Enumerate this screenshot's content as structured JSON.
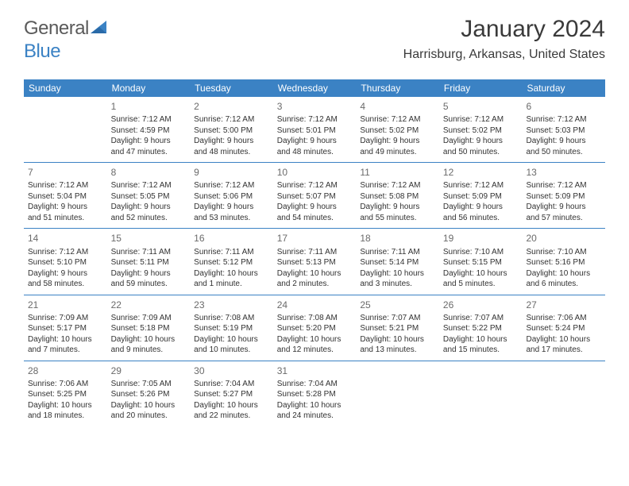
{
  "logo": {
    "text1": "General",
    "text2": "Blue"
  },
  "header": {
    "month": "January 2024",
    "location": "Harrisburg, Arkansas, United States"
  },
  "colors": {
    "accent": "#3b82c4",
    "text": "#323232",
    "muted": "#6a6a6a",
    "bg": "#ffffff"
  },
  "dayNames": [
    "Sunday",
    "Monday",
    "Tuesday",
    "Wednesday",
    "Thursday",
    "Friday",
    "Saturday"
  ],
  "weeks": [
    [
      null,
      {
        "n": "1",
        "sr": "Sunrise: 7:12 AM",
        "ss": "Sunset: 4:59 PM",
        "d1": "Daylight: 9 hours",
        "d2": "and 47 minutes."
      },
      {
        "n": "2",
        "sr": "Sunrise: 7:12 AM",
        "ss": "Sunset: 5:00 PM",
        "d1": "Daylight: 9 hours",
        "d2": "and 48 minutes."
      },
      {
        "n": "3",
        "sr": "Sunrise: 7:12 AM",
        "ss": "Sunset: 5:01 PM",
        "d1": "Daylight: 9 hours",
        "d2": "and 48 minutes."
      },
      {
        "n": "4",
        "sr": "Sunrise: 7:12 AM",
        "ss": "Sunset: 5:02 PM",
        "d1": "Daylight: 9 hours",
        "d2": "and 49 minutes."
      },
      {
        "n": "5",
        "sr": "Sunrise: 7:12 AM",
        "ss": "Sunset: 5:02 PM",
        "d1": "Daylight: 9 hours",
        "d2": "and 50 minutes."
      },
      {
        "n": "6",
        "sr": "Sunrise: 7:12 AM",
        "ss": "Sunset: 5:03 PM",
        "d1": "Daylight: 9 hours",
        "d2": "and 50 minutes."
      }
    ],
    [
      {
        "n": "7",
        "sr": "Sunrise: 7:12 AM",
        "ss": "Sunset: 5:04 PM",
        "d1": "Daylight: 9 hours",
        "d2": "and 51 minutes."
      },
      {
        "n": "8",
        "sr": "Sunrise: 7:12 AM",
        "ss": "Sunset: 5:05 PM",
        "d1": "Daylight: 9 hours",
        "d2": "and 52 minutes."
      },
      {
        "n": "9",
        "sr": "Sunrise: 7:12 AM",
        "ss": "Sunset: 5:06 PM",
        "d1": "Daylight: 9 hours",
        "d2": "and 53 minutes."
      },
      {
        "n": "10",
        "sr": "Sunrise: 7:12 AM",
        "ss": "Sunset: 5:07 PM",
        "d1": "Daylight: 9 hours",
        "d2": "and 54 minutes."
      },
      {
        "n": "11",
        "sr": "Sunrise: 7:12 AM",
        "ss": "Sunset: 5:08 PM",
        "d1": "Daylight: 9 hours",
        "d2": "and 55 minutes."
      },
      {
        "n": "12",
        "sr": "Sunrise: 7:12 AM",
        "ss": "Sunset: 5:09 PM",
        "d1": "Daylight: 9 hours",
        "d2": "and 56 minutes."
      },
      {
        "n": "13",
        "sr": "Sunrise: 7:12 AM",
        "ss": "Sunset: 5:09 PM",
        "d1": "Daylight: 9 hours",
        "d2": "and 57 minutes."
      }
    ],
    [
      {
        "n": "14",
        "sr": "Sunrise: 7:12 AM",
        "ss": "Sunset: 5:10 PM",
        "d1": "Daylight: 9 hours",
        "d2": "and 58 minutes."
      },
      {
        "n": "15",
        "sr": "Sunrise: 7:11 AM",
        "ss": "Sunset: 5:11 PM",
        "d1": "Daylight: 9 hours",
        "d2": "and 59 minutes."
      },
      {
        "n": "16",
        "sr": "Sunrise: 7:11 AM",
        "ss": "Sunset: 5:12 PM",
        "d1": "Daylight: 10 hours",
        "d2": "and 1 minute."
      },
      {
        "n": "17",
        "sr": "Sunrise: 7:11 AM",
        "ss": "Sunset: 5:13 PM",
        "d1": "Daylight: 10 hours",
        "d2": "and 2 minutes."
      },
      {
        "n": "18",
        "sr": "Sunrise: 7:11 AM",
        "ss": "Sunset: 5:14 PM",
        "d1": "Daylight: 10 hours",
        "d2": "and 3 minutes."
      },
      {
        "n": "19",
        "sr": "Sunrise: 7:10 AM",
        "ss": "Sunset: 5:15 PM",
        "d1": "Daylight: 10 hours",
        "d2": "and 5 minutes."
      },
      {
        "n": "20",
        "sr": "Sunrise: 7:10 AM",
        "ss": "Sunset: 5:16 PM",
        "d1": "Daylight: 10 hours",
        "d2": "and 6 minutes."
      }
    ],
    [
      {
        "n": "21",
        "sr": "Sunrise: 7:09 AM",
        "ss": "Sunset: 5:17 PM",
        "d1": "Daylight: 10 hours",
        "d2": "and 7 minutes."
      },
      {
        "n": "22",
        "sr": "Sunrise: 7:09 AM",
        "ss": "Sunset: 5:18 PM",
        "d1": "Daylight: 10 hours",
        "d2": "and 9 minutes."
      },
      {
        "n": "23",
        "sr": "Sunrise: 7:08 AM",
        "ss": "Sunset: 5:19 PM",
        "d1": "Daylight: 10 hours",
        "d2": "and 10 minutes."
      },
      {
        "n": "24",
        "sr": "Sunrise: 7:08 AM",
        "ss": "Sunset: 5:20 PM",
        "d1": "Daylight: 10 hours",
        "d2": "and 12 minutes."
      },
      {
        "n": "25",
        "sr": "Sunrise: 7:07 AM",
        "ss": "Sunset: 5:21 PM",
        "d1": "Daylight: 10 hours",
        "d2": "and 13 minutes."
      },
      {
        "n": "26",
        "sr": "Sunrise: 7:07 AM",
        "ss": "Sunset: 5:22 PM",
        "d1": "Daylight: 10 hours",
        "d2": "and 15 minutes."
      },
      {
        "n": "27",
        "sr": "Sunrise: 7:06 AM",
        "ss": "Sunset: 5:24 PM",
        "d1": "Daylight: 10 hours",
        "d2": "and 17 minutes."
      }
    ],
    [
      {
        "n": "28",
        "sr": "Sunrise: 7:06 AM",
        "ss": "Sunset: 5:25 PM",
        "d1": "Daylight: 10 hours",
        "d2": "and 18 minutes."
      },
      {
        "n": "29",
        "sr": "Sunrise: 7:05 AM",
        "ss": "Sunset: 5:26 PM",
        "d1": "Daylight: 10 hours",
        "d2": "and 20 minutes."
      },
      {
        "n": "30",
        "sr": "Sunrise: 7:04 AM",
        "ss": "Sunset: 5:27 PM",
        "d1": "Daylight: 10 hours",
        "d2": "and 22 minutes."
      },
      {
        "n": "31",
        "sr": "Sunrise: 7:04 AM",
        "ss": "Sunset: 5:28 PM",
        "d1": "Daylight: 10 hours",
        "d2": "and 24 minutes."
      },
      null,
      null,
      null
    ]
  ]
}
